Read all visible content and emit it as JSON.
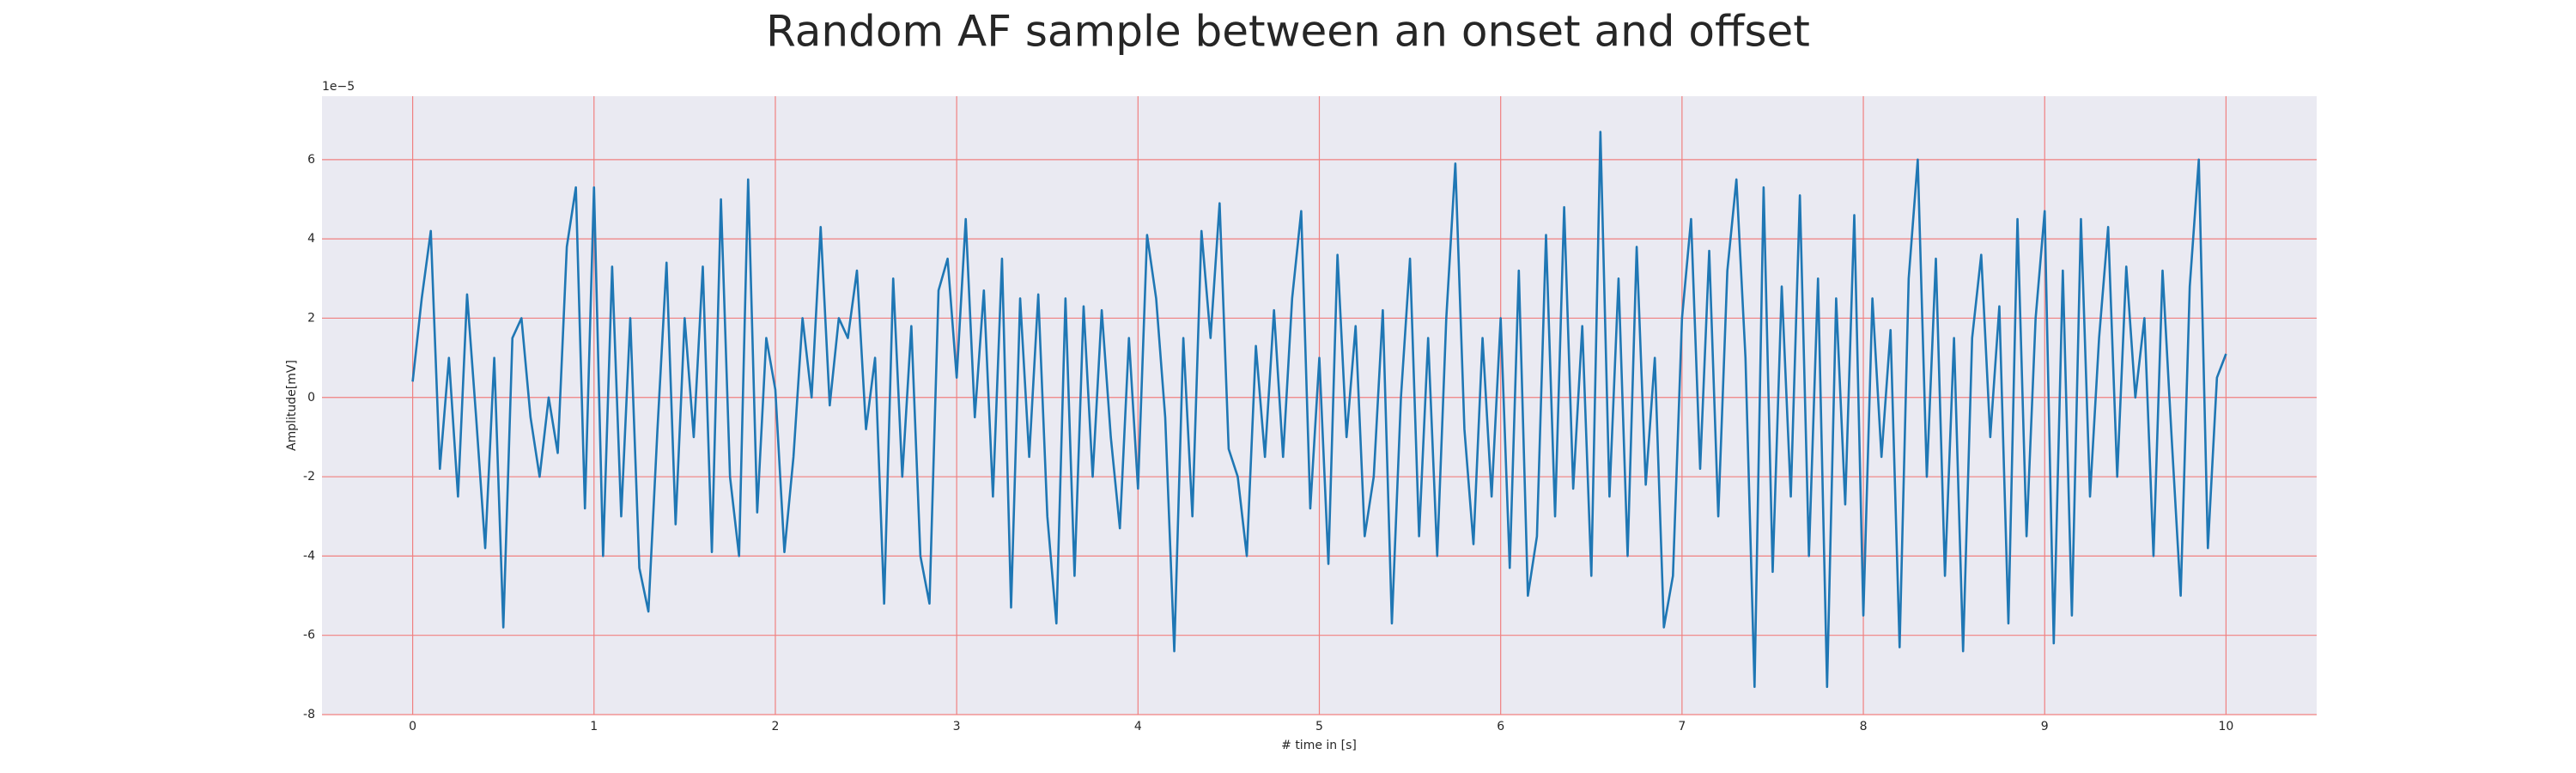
{
  "chart_data": {
    "type": "line",
    "title": "Random AF sample between an onset and offset",
    "x_label": "# time in [s]",
    "y_label": "Amplitude[mV]",
    "y_offset_label": "1e−5",
    "xlim": [
      -0.5,
      10.5
    ],
    "ylim": [
      -8,
      7.6
    ],
    "xticks": [
      0,
      1,
      2,
      3,
      4,
      5,
      6,
      7,
      8,
      9,
      10
    ],
    "yticks": [
      -8,
      -6,
      -4,
      -2,
      0,
      2,
      4,
      6
    ],
    "grid": true,
    "grid_color": "#f08080",
    "background": "#eaeaf2",
    "x": [
      0,
      0.05,
      0.1,
      0.15,
      0.2,
      0.25,
      0.3,
      0.35,
      0.4,
      0.45,
      0.5,
      0.55,
      0.6,
      0.65,
      0.7,
      0.75,
      0.8,
      0.85,
      0.9,
      0.95,
      1,
      1.05,
      1.1,
      1.15,
      1.2,
      1.25,
      1.3,
      1.35,
      1.4,
      1.45,
      1.5,
      1.55,
      1.6,
      1.65,
      1.7,
      1.75,
      1.8,
      1.85,
      1.9,
      1.95,
      2,
      2.05,
      2.1,
      2.15,
      2.2,
      2.25,
      2.3,
      2.35,
      2.4,
      2.45,
      2.5,
      2.55,
      2.6,
      2.65,
      2.7,
      2.75,
      2.8,
      2.85,
      2.9,
      2.95,
      3,
      3.05,
      3.1,
      3.15,
      3.2,
      3.25,
      3.3,
      3.35,
      3.4,
      3.45,
      3.5,
      3.55,
      3.6,
      3.65,
      3.7,
      3.75,
      3.8,
      3.85,
      3.9,
      3.95,
      4,
      4.05,
      4.1,
      4.15,
      4.2,
      4.25,
      4.3,
      4.35,
      4.4,
      4.45,
      4.5,
      4.55,
      4.6,
      4.65,
      4.7,
      4.75,
      4.8,
      4.85,
      4.9,
      4.95,
      5,
      5.05,
      5.1,
      5.15,
      5.2,
      5.25,
      5.3,
      5.35,
      5.4,
      5.45,
      5.5,
      5.55,
      5.6,
      5.65,
      5.7,
      5.75,
      5.8,
      5.85,
      5.9,
      5.95,
      6,
      6.05,
      6.1,
      6.15,
      6.2,
      6.25,
      6.3,
      6.35,
      6.4,
      6.45,
      6.5,
      6.55,
      6.6,
      6.65,
      6.7,
      6.75,
      6.8,
      6.85,
      6.9,
      6.95,
      7,
      7.05,
      7.1,
      7.15,
      7.2,
      7.25,
      7.3,
      7.35,
      7.4,
      7.45,
      7.5,
      7.55,
      7.6,
      7.65,
      7.7,
      7.75,
      7.8,
      7.85,
      7.9,
      7.95,
      8,
      8.05,
      8.1,
      8.15,
      8.2,
      8.25,
      8.3,
      8.35,
      8.4,
      8.45,
      8.5,
      8.55,
      8.6,
      8.65,
      8.7,
      8.75,
      8.8,
      8.85,
      8.9,
      8.95,
      9,
      9.05,
      9.1,
      9.15,
      9.2,
      9.25,
      9.3,
      9.35,
      9.4,
      9.45,
      9.5,
      9.55,
      9.6,
      9.65,
      9.7,
      9.75,
      9.8,
      9.85,
      9.9,
      9.95,
      10
    ],
    "series": [
      {
        "color": "#1f77b4",
        "values": [
          0.4,
          2.5,
          4.2,
          -1.8,
          1.0,
          -2.5,
          2.6,
          -0.5,
          -3.8,
          1.0,
          -5.8,
          1.5,
          2.0,
          -0.5,
          -2.0,
          0.0,
          -1.4,
          3.8,
          5.3,
          -2.8,
          5.3,
          -4.0,
          3.3,
          -3.0,
          2.0,
          -4.3,
          -5.4,
          -0.8,
          3.4,
          -3.2,
          2.0,
          -1.0,
          3.3,
          -3.9,
          5.0,
          -2.0,
          -4.0,
          5.5,
          -2.9,
          1.5,
          0.2,
          -3.9,
          -1.5,
          2.0,
          0.0,
          4.3,
          -0.2,
          2.0,
          1.5,
          3.2,
          -0.8,
          1.0,
          -5.2,
          3.0,
          -2.0,
          1.8,
          -4.0,
          -5.2,
          2.7,
          3.5,
          0.5,
          4.5,
          -0.5,
          2.7,
          -2.5,
          3.5,
          -5.3,
          2.5,
          -1.5,
          2.6,
          -3.0,
          -5.7,
          2.5,
          -4.5,
          2.3,
          -2.0,
          2.2,
          -1.0,
          -3.3,
          1.5,
          -2.3,
          4.1,
          2.5,
          -0.5,
          -6.4,
          1.5,
          -3.0,
          4.2,
          1.5,
          4.9,
          -1.3,
          -2.0,
          -4.0,
          1.3,
          -1.5,
          2.2,
          -1.5,
          2.5,
          4.7,
          -2.8,
          1.0,
          -4.2,
          3.6,
          -1.0,
          1.8,
          -3.5,
          -2.0,
          2.2,
          -5.7,
          0.0,
          3.5,
          -3.5,
          1.5,
          -4.0,
          2.0,
          5.9,
          -0.8,
          -3.7,
          1.5,
          -2.5,
          2.0,
          -4.3,
          3.2,
          -5.0,
          -3.5,
          4.1,
          -3.0,
          4.8,
          -2.3,
          1.8,
          -4.5,
          6.7,
          -2.5,
          3.0,
          -4.0,
          3.8,
          -2.2,
          1.0,
          -5.8,
          -4.5,
          2.0,
          4.5,
          -1.8,
          3.7,
          -3.0,
          3.2,
          5.5,
          1.0,
          -7.3,
          5.3,
          -4.4,
          2.8,
          -2.5,
          5.1,
          -4.0,
          3.0,
          -7.3,
          2.5,
          -2.7,
          4.6,
          -5.5,
          2.5,
          -1.5,
          1.7,
          -6.3,
          3.0,
          6.0,
          -2.0,
          3.5,
          -4.5,
          1.5,
          -6.4,
          1.5,
          3.6,
          -1.0,
          2.3,
          -5.7,
          4.5,
          -3.5,
          2.0,
          4.7,
          -6.2,
          3.2,
          -5.5,
          4.5,
          -2.5,
          1.5,
          4.3,
          -2.0,
          3.3,
          0.0,
          2.0,
          -4.0,
          3.2,
          -1.0,
          -5.0,
          2.8,
          6.0,
          -3.8,
          0.5,
          1.1
        ]
      }
    ]
  }
}
